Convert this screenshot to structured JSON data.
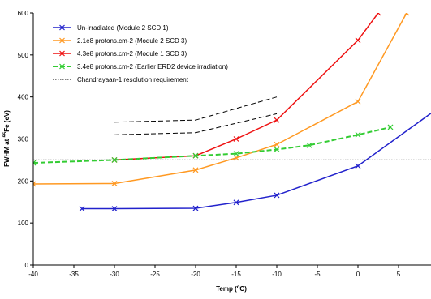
{
  "chart_data": {
    "type": "line",
    "title": "",
    "xlabel": "Temp (°C)",
    "ylabel": "FWHM at 55Fe (eV)",
    "xlabel_parts": [
      "Temp (",
      "o",
      "C)"
    ],
    "ylabel_parts": [
      "FWHM at ",
      "55",
      "Fe (eV)"
    ],
    "xlim": [
      -40,
      9
    ],
    "ylim": [
      0,
      600
    ],
    "xticks": [
      -40,
      -35,
      -30,
      -25,
      -20,
      -15,
      -10,
      -5,
      0,
      5
    ],
    "yticks": [
      0,
      100,
      200,
      300,
      400,
      500,
      600
    ],
    "grid": false,
    "legend_position": "top-left",
    "series": [
      {
        "name": "Un-irradiated (Module 2 SCD 1)",
        "color": "#2222cc",
        "line_style": "solid",
        "marker": "x",
        "x": [
          -34,
          -30,
          -20,
          -15,
          -10,
          0,
          10
        ],
        "y": [
          134,
          134,
          135,
          149,
          166,
          236,
          375
        ]
      },
      {
        "name": "2.1e8 protons.cm-2 (Module 2 SCD 3)",
        "color": "#ff9922",
        "line_style": "solid",
        "marker": "x",
        "x": [
          -40,
          -30,
          -20,
          -15,
          -10,
          0,
          6
        ],
        "y": [
          193,
          194,
          226,
          255,
          287,
          389,
          600
        ]
      },
      {
        "name": "4.3e8 protons.cm-2 (Module 1 SCD 3)",
        "color": "#ee1111",
        "line_style": "solid",
        "marker": "x",
        "x": [
          -30,
          -20,
          -15,
          -10,
          0,
          2.5
        ],
        "y": [
          250,
          260,
          300,
          345,
          535,
          600
        ]
      },
      {
        "name": "3.4e8 protons.cm-2 (Earlier ERD2 device irradiation)",
        "color": "#33cc33",
        "line_style": "dashed",
        "marker": "x",
        "x": [
          -40,
          -30,
          -20,
          -15,
          -10,
          -6,
          0,
          4
        ],
        "y": [
          243,
          250,
          260,
          265,
          275,
          285,
          310,
          328
        ]
      },
      {
        "name": "Chandrayaan-1 resolution requirement",
        "color": "#000000",
        "line_style": "dotted",
        "marker": "none",
        "x": [
          -40,
          9
        ],
        "y": [
          250,
          250
        ]
      }
    ],
    "annotations": [
      {
        "color": "#000000",
        "line_style": "dashed",
        "x": [
          -30,
          -20,
          -10
        ],
        "y": [
          340,
          345,
          400
        ]
      },
      {
        "color": "#000000",
        "line_style": "dashed",
        "x": [
          -30,
          -20,
          -10
        ],
        "y": [
          310,
          315,
          360
        ]
      }
    ]
  }
}
